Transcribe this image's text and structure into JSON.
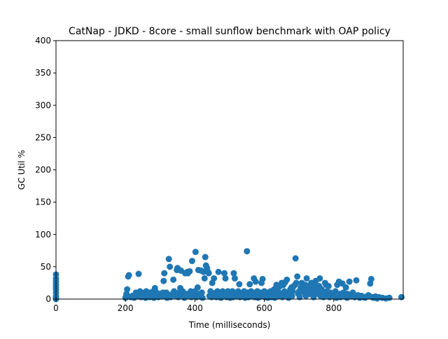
{
  "chart_data": {
    "type": "scatter",
    "title": "CatNap - JDKD - 8core -  small sunflow benchmark with OAP policy",
    "xlabel": "Time (milliseconds)",
    "ylabel": "GC Util %",
    "xlim": [
      0,
      1000
    ],
    "ylim": [
      0,
      400
    ],
    "xticks": [
      0,
      200,
      400,
      600,
      800
    ],
    "yticks": [
      0,
      50,
      100,
      150,
      200,
      250,
      300,
      350,
      400
    ],
    "grid": false,
    "legend": "none",
    "marker_color": "#1f77b4",
    "series": [
      {
        "points": [
          [
            0,
            0
          ],
          [
            0,
            2
          ],
          [
            0,
            5
          ],
          [
            0,
            10
          ],
          [
            0,
            15
          ],
          [
            0,
            18
          ],
          [
            0,
            22
          ],
          [
            0,
            27
          ],
          [
            0,
            32
          ],
          [
            0,
            38
          ],
          [
            200,
            2
          ],
          [
            202,
            5
          ],
          [
            203,
            8
          ],
          [
            205,
            15
          ],
          [
            208,
            35
          ],
          [
            210,
            37
          ],
          [
            215,
            3
          ],
          [
            220,
            5
          ],
          [
            225,
            2
          ],
          [
            228,
            6
          ],
          [
            230,
            10
          ],
          [
            235,
            4
          ],
          [
            238,
            39
          ],
          [
            240,
            8
          ],
          [
            242,
            12
          ],
          [
            245,
            3
          ],
          [
            250,
            6
          ],
          [
            255,
            10
          ],
          [
            258,
            2
          ],
          [
            260,
            12
          ],
          [
            262,
            5
          ],
          [
            265,
            8
          ],
          [
            270,
            3
          ],
          [
            272,
            10
          ],
          [
            275,
            6
          ],
          [
            280,
            12
          ],
          [
            282,
            2
          ],
          [
            285,
            17
          ],
          [
            288,
            6
          ],
          [
            290,
            10
          ],
          [
            295,
            3
          ],
          [
            300,
            8
          ],
          [
            305,
            4
          ],
          [
            308,
            10
          ],
          [
            310,
            28
          ],
          [
            312,
            40
          ],
          [
            315,
            4
          ],
          [
            318,
            10
          ],
          [
            320,
            2
          ],
          [
            322,
            7
          ],
          [
            325,
            62
          ],
          [
            328,
            50
          ],
          [
            330,
            3
          ],
          [
            335,
            8
          ],
          [
            338,
            30
          ],
          [
            340,
            12
          ],
          [
            345,
            5
          ],
          [
            348,
            45
          ],
          [
            350,
            48
          ],
          [
            352,
            3
          ],
          [
            355,
            10
          ],
          [
            358,
            17
          ],
          [
            360,
            44
          ],
          [
            362,
            6
          ],
          [
            365,
            12
          ],
          [
            370,
            2
          ],
          [
            372,
            40
          ],
          [
            375,
            8
          ],
          [
            378,
            42
          ],
          [
            380,
            40
          ],
          [
            382,
            5
          ],
          [
            385,
            43
          ],
          [
            388,
            12
          ],
          [
            390,
            3
          ],
          [
            392,
            59
          ],
          [
            395,
            8
          ],
          [
            398,
            6
          ],
          [
            400,
            12
          ],
          [
            402,
            73
          ],
          [
            405,
            3
          ],
          [
            408,
            18
          ],
          [
            410,
            45
          ],
          [
            412,
            8
          ],
          [
            415,
            4
          ],
          [
            418,
            44
          ],
          [
            420,
            10
          ],
          [
            422,
            2
          ],
          [
            425,
            42
          ],
          [
            428,
            32
          ],
          [
            430,
            65
          ],
          [
            432,
            52
          ],
          [
            435,
            48
          ],
          [
            438,
            42
          ],
          [
            440,
            40
          ],
          [
            442,
            5
          ],
          [
            445,
            12
          ],
          [
            448,
            3
          ],
          [
            450,
            25
          ],
          [
            452,
            8
          ],
          [
            455,
            32
          ],
          [
            458,
            6
          ],
          [
            460,
            10
          ],
          [
            462,
            3
          ],
          [
            465,
            12
          ],
          [
            468,
            42
          ],
          [
            470,
            5
          ],
          [
            472,
            8
          ],
          [
            475,
            2
          ],
          [
            478,
            6
          ],
          [
            480,
            12
          ],
          [
            482,
            4
          ],
          [
            485,
            40
          ],
          [
            488,
            32
          ],
          [
            490,
            8
          ],
          [
            492,
            3
          ],
          [
            495,
            12
          ],
          [
            498,
            5
          ],
          [
            500,
            10
          ],
          [
            502,
            2
          ],
          [
            505,
            8
          ],
          [
            508,
            12
          ],
          [
            510,
            3
          ],
          [
            512,
            40
          ],
          [
            515,
            32
          ],
          [
            518,
            6
          ],
          [
            520,
            10
          ],
          [
            522,
            4
          ],
          [
            525,
            12
          ],
          [
            528,
            23
          ],
          [
            530,
            3
          ],
          [
            532,
            6
          ],
          [
            535,
            8
          ],
          [
            538,
            10
          ],
          [
            540,
            5
          ],
          [
            542,
            12
          ],
          [
            545,
            2
          ],
          [
            548,
            8
          ],
          [
            550,
            74
          ],
          [
            552,
            10
          ],
          [
            555,
            3
          ],
          [
            558,
            23
          ],
          [
            560,
            6
          ],
          [
            562,
            12
          ],
          [
            565,
            5
          ],
          [
            568,
            10
          ],
          [
            570,
            32
          ],
          [
            572,
            3
          ],
          [
            575,
            27
          ],
          [
            578,
            8
          ],
          [
            580,
            12
          ],
          [
            582,
            2
          ],
          [
            585,
            6
          ],
          [
            588,
            10
          ],
          [
            590,
            4
          ],
          [
            592,
            25
          ],
          [
            595,
            31
          ],
          [
            598,
            8
          ],
          [
            600,
            12
          ],
          [
            602,
            3
          ],
          [
            605,
            6
          ],
          [
            608,
            10
          ],
          [
            610,
            2
          ],
          [
            612,
            8
          ],
          [
            615,
            5
          ],
          [
            618,
            12
          ],
          [
            620,
            3
          ],
          [
            622,
            6
          ],
          [
            625,
            10
          ],
          [
            628,
            15
          ],
          [
            630,
            2
          ],
          [
            632,
            8
          ],
          [
            635,
            22
          ],
          [
            638,
            18
          ],
          [
            640,
            12
          ],
          [
            642,
            5
          ],
          [
            645,
            20
          ],
          [
            648,
            8
          ],
          [
            650,
            25
          ],
          [
            652,
            3
          ],
          [
            655,
            22
          ],
          [
            658,
            12
          ],
          [
            660,
            26
          ],
          [
            662,
            6
          ],
          [
            665,
            30
          ],
          [
            668,
            10
          ],
          [
            670,
            2
          ],
          [
            672,
            8
          ],
          [
            675,
            15
          ],
          [
            678,
            18
          ],
          [
            680,
            5
          ],
          [
            682,
            12
          ],
          [
            685,
            20
          ],
          [
            688,
            22
          ],
          [
            690,
            63
          ],
          [
            692,
            25
          ],
          [
            695,
            35
          ],
          [
            698,
            8
          ],
          [
            700,
            12
          ],
          [
            702,
            3
          ],
          [
            705,
            18
          ],
          [
            708,
            25
          ],
          [
            710,
            20
          ],
          [
            712,
            15
          ],
          [
            715,
            10
          ],
          [
            718,
            22
          ],
          [
            720,
            5
          ],
          [
            722,
            32
          ],
          [
            725,
            18
          ],
          [
            728,
            12
          ],
          [
            730,
            20
          ],
          [
            732,
            8
          ],
          [
            735,
            25
          ],
          [
            738,
            15
          ],
          [
            740,
            10
          ],
          [
            742,
            3
          ],
          [
            745,
            22
          ],
          [
            748,
            28
          ],
          [
            750,
            18
          ],
          [
            752,
            12
          ],
          [
            755,
            8
          ],
          [
            758,
            20
          ],
          [
            760,
            32
          ],
          [
            762,
            5
          ],
          [
            765,
            15
          ],
          [
            768,
            10
          ],
          [
            770,
            3
          ],
          [
            772,
            8
          ],
          [
            775,
            25
          ],
          [
            778,
            22
          ],
          [
            780,
            12
          ],
          [
            782,
            6
          ],
          [
            785,
            20
          ],
          [
            788,
            3
          ],
          [
            790,
            10
          ],
          [
            795,
            8
          ],
          [
            800,
            5
          ],
          [
            805,
            12
          ],
          [
            808,
            2
          ],
          [
            810,
            22
          ],
          [
            815,
            27
          ],
          [
            818,
            8
          ],
          [
            820,
            3
          ],
          [
            825,
            24
          ],
          [
            828,
            10
          ],
          [
            830,
            5
          ],
          [
            835,
            18
          ],
          [
            838,
            2
          ],
          [
            840,
            8
          ],
          [
            845,
            27
          ],
          [
            850,
            4
          ],
          [
            855,
            10
          ],
          [
            860,
            3
          ],
          [
            865,
            29
          ],
          [
            870,
            6
          ],
          [
            875,
            2
          ],
          [
            880,
            5
          ],
          [
            885,
            3
          ],
          [
            890,
            2
          ],
          [
            895,
            4
          ],
          [
            900,
            6
          ],
          [
            905,
            24
          ],
          [
            908,
            31
          ],
          [
            910,
            3
          ],
          [
            915,
            2
          ],
          [
            920,
            4
          ],
          [
            925,
            1
          ],
          [
            930,
            3
          ],
          [
            940,
            2
          ],
          [
            950,
            1
          ],
          [
            960,
            2
          ],
          [
            995,
            3
          ]
        ]
      }
    ]
  }
}
